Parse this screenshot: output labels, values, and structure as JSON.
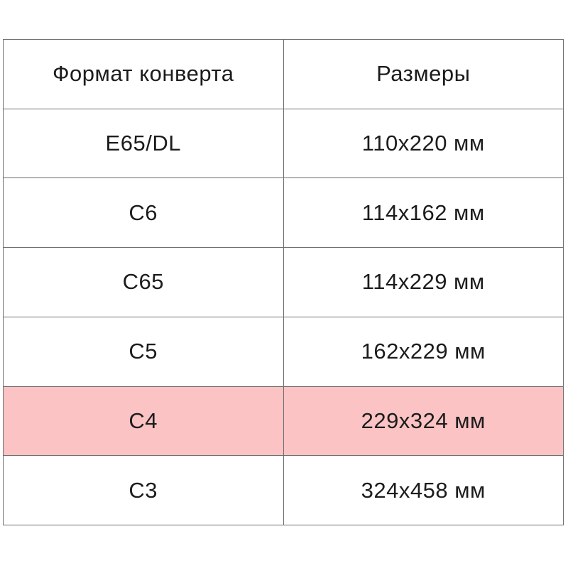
{
  "chart_data": {
    "type": "table",
    "title": "",
    "columns": [
      "Формат конверта",
      "Размеры"
    ],
    "rows": [
      [
        "E65/DL",
        "110x220 мм"
      ],
      [
        "C6",
        "114x162 мм"
      ],
      [
        "C65",
        "114x229 мм"
      ],
      [
        "C5",
        "162x229 мм"
      ],
      [
        "C4",
        "229x324 мм"
      ],
      [
        "C3",
        "324x458 мм"
      ]
    ],
    "highlighted_row_index": 4
  },
  "table": {
    "headers": {
      "format": "Формат конверта",
      "size": "Размеры"
    },
    "rows": [
      {
        "format": "E65/DL",
        "size": "110x220 мм"
      },
      {
        "format": "C6",
        "size": "114x162 мм"
      },
      {
        "format": "C65",
        "size": "114x229 мм"
      },
      {
        "format": "C5",
        "size": "162x229 мм"
      },
      {
        "format": "C4",
        "size": "229x324 мм"
      },
      {
        "format": "C3",
        "size": "324x458 мм"
      }
    ]
  },
  "colors": {
    "highlight": "#fbc3c4",
    "border": "#6e6e6e",
    "text": "#1c1c1c",
    "background": "#ffffff"
  }
}
